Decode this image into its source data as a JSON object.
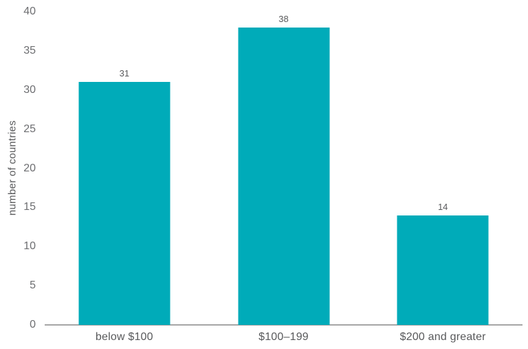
{
  "chart_data": {
    "type": "bar",
    "categories": [
      "below $100",
      "$100–199",
      "$200 and greater"
    ],
    "values": [
      31,
      38,
      14
    ],
    "title": "",
    "xlabel": "",
    "ylabel": "number of countries",
    "ylim": [
      0,
      40
    ],
    "yticks": [
      0,
      5,
      10,
      15,
      20,
      25,
      30,
      35,
      40
    ],
    "grid": false,
    "legend": false,
    "bar_color": "#00abb9",
    "axis_line_color": "#a6a6a6",
    "tick_label_color": "#6d6e71",
    "text_color": "#58595b"
  }
}
